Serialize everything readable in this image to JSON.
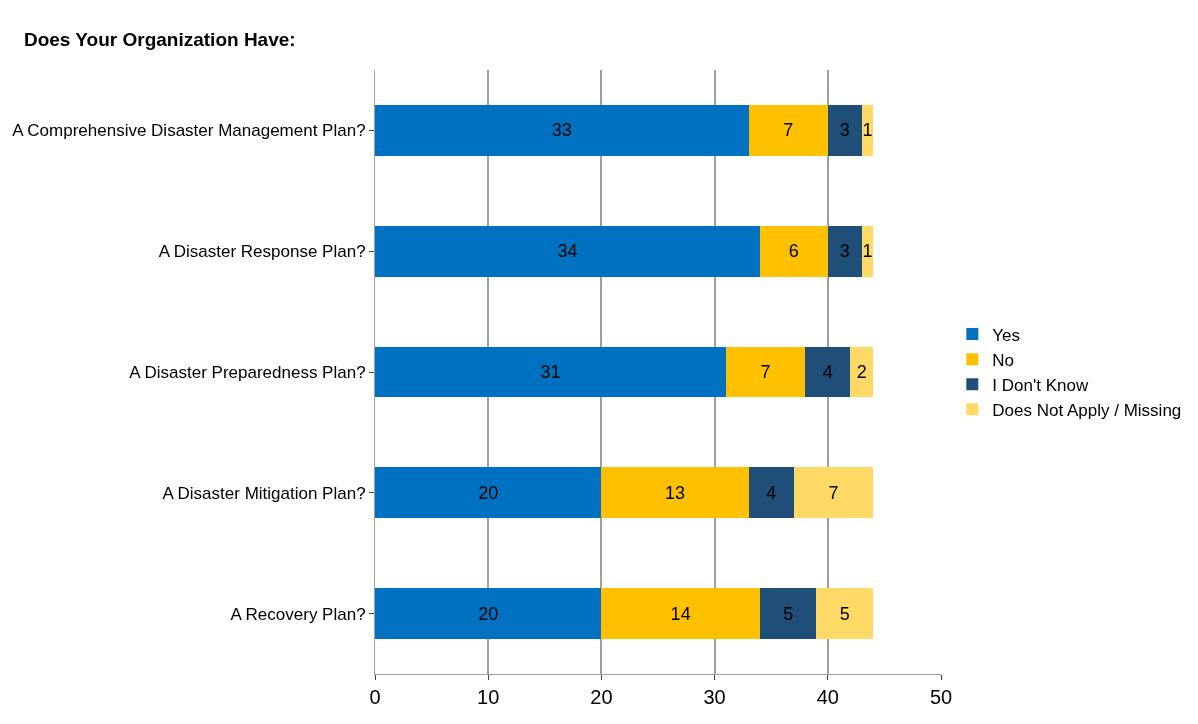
{
  "chart_data": {
    "type": "bar",
    "orientation": "horizontal",
    "stacked": true,
    "title": "Does Your Organization Have:",
    "categories": [
      "A Comprehensive Disaster Management Plan?",
      "A Disaster Response Plan?",
      "A Disaster Preparedness Plan?",
      "A Disaster Mitigation Plan?",
      "A Recovery Plan?"
    ],
    "series": [
      {
        "name": "Yes",
        "color": "#0070c0",
        "values": [
          33,
          34,
          31,
          20,
          20
        ]
      },
      {
        "name": "No",
        "color": "#ffc000",
        "values": [
          7,
          6,
          7,
          13,
          14
        ]
      },
      {
        "name": "I Don't Know",
        "color": "#1f4e79",
        "values": [
          3,
          3,
          4,
          4,
          5
        ]
      },
      {
        "name": "Does Not Apply / Missing",
        "color": "#ffd966",
        "values": [
          1,
          1,
          2,
          7,
          5
        ]
      }
    ],
    "xlim": [
      0,
      50
    ],
    "xticks": [
      0,
      10,
      20,
      30,
      40,
      50
    ],
    "grid": "x",
    "legend": "right",
    "data_labels": true
  }
}
